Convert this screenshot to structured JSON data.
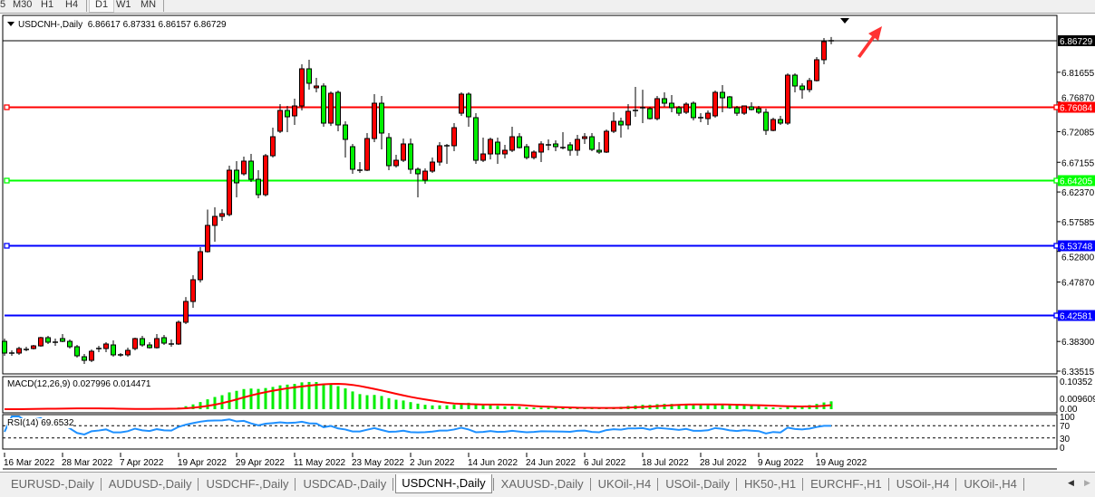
{
  "toolbar": {
    "timeframes": [
      "5",
      "M30",
      "H1",
      "H4",
      "D1",
      "W1",
      "MN"
    ],
    "active": "D1"
  },
  "header": {
    "symbol": "USDCNH-,Daily",
    "ohlc": "6.86617 6.87331 6.86157 6.86729"
  },
  "colors": {
    "bull": "#ff0000",
    "bear": "#00ee00",
    "macd_hist": "#00ee00",
    "macd_signal": "#ff0000",
    "rsi": "#1e90ff",
    "level_red": "#ff0000",
    "level_green": "#00ff00",
    "level_blue": "#0000ff",
    "arrow": "#ff3333"
  },
  "price_axis": {
    "max": 6.86729,
    "min": 6.33515,
    "ticks": [
      "6.81655",
      "6.76870",
      "6.72085",
      "6.67155",
      "6.62370",
      "6.57585",
      "6.52800",
      "6.47870",
      "6.38300",
      "6.33515"
    ],
    "current_price": "6.86729"
  },
  "levels": [
    {
      "price": "6.76084",
      "color": "#ff0000",
      "text_color": "#ffffff"
    },
    {
      "price": "6.64205",
      "color": "#00ff00",
      "text_color": "#ffffff"
    },
    {
      "price": "6.53748",
      "color": "#0000ff",
      "text_color": "#ffffff"
    },
    {
      "price": "6.42581",
      "color": "#0000ff",
      "text_color": "#ffffff"
    }
  ],
  "macd": {
    "label": "MACD(12,26,9) 0.027996 0.014471",
    "fast": 12,
    "slow": 26,
    "signal": 9,
    "axis_top": "0.10352",
    "axis_bottom": "0.009609",
    "axis_zero": "0.00",
    "max": 0.10352,
    "min": -0.0096
  },
  "rsi": {
    "label": "RSI(14) 69.6532",
    "period": 14,
    "levels": [
      "100",
      "70",
      "30",
      "0"
    ]
  },
  "date_labels": [
    "16 Mar 2022",
    "28 Mar 2022",
    "7 Apr 2022",
    "19 Apr 2022",
    "29 Apr 2022",
    "11 May 2022",
    "23 May 2022",
    "2 Jun 2022",
    "14 Jun 2022",
    "24 Jun 2022",
    "6 Jul 2022",
    "18 Jul 2022",
    "28 Jul 2022",
    "9 Aug 2022",
    "19 Aug 2022"
  ],
  "tabs": [
    {
      "label": "EURUSD-,Daily"
    },
    {
      "label": "AUDUSD-,Daily"
    },
    {
      "label": "USDCHF-,Daily"
    },
    {
      "label": "USDCAD-,Daily"
    },
    {
      "label": "USDCNH-,Daily",
      "active": true
    },
    {
      "label": "XAUUSD-,Daily"
    },
    {
      "label": "UKOil-,H4"
    },
    {
      "label": "USOil-,Daily"
    },
    {
      "label": "HK50-,H1"
    },
    {
      "label": "EURCHF-,H1"
    },
    {
      "label": "USOil-,H4"
    },
    {
      "label": "UKOil-,H4"
    }
  ],
  "chart_data": {
    "type": "candlestick",
    "symbol": "USDCNH-",
    "timeframe": "Daily",
    "x_range": [
      "16 Mar 2022",
      "24 Aug 2022"
    ],
    "ylim": [
      6.33515,
      6.86729
    ],
    "grid": false,
    "candles_ohlc": [
      [
        6.3832,
        6.3876,
        6.3599,
        6.3643
      ],
      [
        6.3643,
        6.3687,
        6.3599,
        6.3643
      ],
      [
        6.3643,
        6.3745,
        6.3614,
        6.3716
      ],
      [
        6.3701,
        6.3745,
        6.3672,
        6.3701
      ],
      [
        6.3716,
        6.3774,
        6.3701,
        6.3759
      ],
      [
        6.3759,
        6.3905,
        6.3745,
        6.3891
      ],
      [
        6.3891,
        6.392,
        6.3789,
        6.3818
      ],
      [
        6.3818,
        6.3876,
        6.3759,
        6.3818
      ],
      [
        6.3876,
        6.3949,
        6.3818,
        6.3832
      ],
      [
        6.3832,
        6.3862,
        6.3716,
        6.3745
      ],
      [
        6.3745,
        6.3774,
        6.357,
        6.3599
      ],
      [
        6.3584,
        6.3628,
        6.3468,
        6.3526
      ],
      [
        6.3526,
        6.3701,
        6.3497,
        6.3672
      ],
      [
        6.3716,
        6.3759,
        6.3657,
        6.3716
      ],
      [
        6.3716,
        6.3818,
        6.3657,
        6.3789
      ],
      [
        6.3774,
        6.3847,
        6.3585,
        6.3614
      ],
      [
        6.3614,
        6.3643,
        6.3585,
        6.3614
      ],
      [
        6.3614,
        6.373,
        6.3585,
        6.3687
      ],
      [
        6.3716,
        6.3891,
        6.3687,
        6.3876
      ],
      [
        6.3876,
        6.392,
        6.3745,
        6.3774
      ],
      [
        6.3774,
        6.3818,
        6.3716,
        6.373
      ],
      [
        6.373,
        6.3949,
        6.3716,
        6.3876
      ],
      [
        6.3891,
        6.3935,
        6.3774,
        6.3803
      ],
      [
        6.3789,
        6.3862,
        6.3745,
        6.3789
      ],
      [
        6.3789,
        6.4168,
        6.3774,
        6.4139
      ],
      [
        6.4139,
        6.4546,
        6.411,
        6.4474
      ],
      [
        6.4474,
        6.4896,
        6.4372,
        6.4824
      ],
      [
        6.4824,
        6.5349,
        6.478,
        6.5276
      ],
      [
        6.5276,
        6.5953,
        6.5262,
        6.5699
      ],
      [
        6.5699,
        6.599,
        6.5437,
        6.5844
      ],
      [
        6.5844,
        6.596,
        6.5771,
        6.5888
      ],
      [
        6.5874,
        6.6661,
        6.5844,
        6.6588
      ],
      [
        6.6588,
        6.6734,
        6.6151,
        6.6384
      ],
      [
        6.653,
        6.6807,
        6.6501,
        6.6734
      ],
      [
        6.6734,
        6.685,
        6.6398,
        6.6442
      ],
      [
        6.6442,
        6.6588,
        6.6137,
        6.6194
      ],
      [
        6.6194,
        6.685,
        6.6166,
        6.6821
      ],
      [
        6.6821,
        6.7273,
        6.6792,
        6.7127
      ],
      [
        6.7215,
        6.7652,
        6.7186,
        6.755
      ],
      [
        6.755,
        6.7623,
        6.72,
        6.7448
      ],
      [
        6.7463,
        6.774,
        6.7317,
        6.7623
      ],
      [
        6.7623,
        6.8294,
        6.755,
        6.8221
      ],
      [
        6.8221,
        6.8367,
        6.7886,
        6.7988
      ],
      [
        6.7915,
        6.8075,
        6.7842,
        6.7944
      ],
      [
        6.7944,
        6.7988,
        6.7288,
        6.7346
      ],
      [
        6.7346,
        6.7856,
        6.73,
        6.7827
      ],
      [
        6.7842,
        6.7871,
        6.7215,
        6.7317
      ],
      [
        6.7317,
        6.7375,
        6.6792,
        6.7084
      ],
      [
        6.6967,
        6.7011,
        6.653,
        6.6603
      ],
      [
        6.6588,
        6.6719,
        6.6544,
        6.6588
      ],
      [
        6.6588,
        6.7186,
        6.6573,
        6.7098
      ],
      [
        6.7098,
        6.7813,
        6.704,
        6.7667
      ],
      [
        6.7667,
        6.7784,
        6.6923,
        6.7186
      ],
      [
        6.7113,
        6.7186,
        6.6588,
        6.6661
      ],
      [
        6.6661,
        6.6836,
        6.663,
        6.6748
      ],
      [
        6.6748,
        6.7098,
        6.6719,
        6.7011
      ],
      [
        6.7011,
        6.7098,
        6.653,
        6.6603
      ],
      [
        6.6603,
        6.6632,
        6.6151,
        6.653
      ],
      [
        6.6428,
        6.6617,
        6.6369,
        6.6573
      ],
      [
        6.6573,
        6.6792,
        6.6544,
        6.6719
      ],
      [
        6.6719,
        6.704,
        6.6661,
        6.6982
      ],
      [
        6.6982,
        6.7011,
        6.669,
        6.6982
      ],
      [
        6.6982,
        6.7346,
        6.6894,
        6.7273
      ],
      [
        6.7506,
        6.7842,
        6.7463,
        6.7813
      ],
      [
        6.7813,
        6.7842,
        6.7288,
        6.7448
      ],
      [
        6.7434,
        6.7506,
        6.669,
        6.6748
      ],
      [
        6.6748,
        6.7113,
        6.6719,
        6.685
      ],
      [
        6.685,
        6.7113,
        6.6762,
        6.7084
      ],
      [
        6.704,
        6.7113,
        6.669,
        6.685
      ],
      [
        6.685,
        6.6996,
        6.6777,
        6.6909
      ],
      [
        6.6909,
        6.7288,
        6.688,
        6.7127
      ],
      [
        6.7127,
        6.7186,
        6.6938,
        6.6952
      ],
      [
        6.6967,
        6.7011,
        6.6762,
        6.6792
      ],
      [
        6.6792,
        6.6909,
        6.6762,
        6.688
      ],
      [
        6.688,
        6.7054,
        6.6719,
        6.7011
      ],
      [
        6.6996,
        6.7084,
        6.6909,
        6.6996
      ],
      [
        6.7011,
        6.7069,
        6.6894,
        6.6967
      ],
      [
        6.6952,
        6.72,
        6.6923,
        6.6952
      ],
      [
        6.6996,
        6.704,
        6.6821,
        6.6909
      ],
      [
        6.6909,
        6.7157,
        6.6821,
        6.7084
      ],
      [
        6.7098,
        6.7186,
        6.7011,
        6.7127
      ],
      [
        6.7127,
        6.7186,
        6.6894,
        6.6923
      ],
      [
        6.6909,
        6.704,
        6.685,
        6.688
      ],
      [
        6.688,
        6.7244,
        6.6865,
        6.7215
      ],
      [
        6.7215,
        6.7521,
        6.7186,
        6.7375
      ],
      [
        6.7375,
        6.7434,
        6.7113,
        6.7317
      ],
      [
        6.7317,
        6.7652,
        6.7244,
        6.7536
      ],
      [
        6.755,
        6.7929,
        6.7448,
        6.755
      ],
      [
        6.7579,
        6.7884,
        6.7346,
        6.7594
      ],
      [
        6.7579,
        6.7608,
        6.7404,
        6.7419
      ],
      [
        6.7419,
        6.7784,
        6.739,
        6.774
      ],
      [
        6.774,
        6.7842,
        6.7608,
        6.7667
      ],
      [
        6.7667,
        6.7798,
        6.7521,
        6.7594
      ],
      [
        6.7594,
        6.7623,
        6.7463,
        6.7506
      ],
      [
        6.7521,
        6.7681,
        6.7492,
        6.7652
      ],
      [
        6.7667,
        6.7696,
        6.739,
        6.7434
      ],
      [
        6.7434,
        6.7506,
        6.736,
        6.7434
      ],
      [
        6.7419,
        6.755,
        6.7317,
        6.7506
      ],
      [
        6.7463,
        6.7871,
        6.7434,
        6.7842
      ],
      [
        6.7842,
        6.7958,
        6.7521,
        6.7754
      ],
      [
        6.7769,
        6.7784,
        6.7579,
        6.7594
      ],
      [
        6.7594,
        6.7623,
        6.7463,
        6.7506
      ],
      [
        6.7506,
        6.7623,
        6.7477,
        6.7623
      ],
      [
        6.7609,
        6.7682,
        6.755,
        6.7565
      ],
      [
        6.7579,
        6.7623,
        6.7492,
        6.7521
      ],
      [
        6.7521,
        6.7579,
        6.7156,
        6.7229
      ],
      [
        6.7229,
        6.7433,
        6.7215,
        6.7404
      ],
      [
        6.7404,
        6.7463,
        6.7317,
        6.7346
      ],
      [
        6.7346,
        6.8148,
        6.7317,
        6.8119
      ],
      [
        6.8119,
        6.8148,
        6.7842,
        6.7944
      ],
      [
        6.7944,
        6.7987,
        6.774,
        6.7886
      ],
      [
        6.7886,
        6.8075,
        6.7842,
        6.8031
      ],
      [
        6.8031,
        6.8411,
        6.8017,
        6.8367
      ],
      [
        6.8367,
        6.8717,
        6.8294,
        6.8658
      ],
      [
        6.86617,
        6.87331,
        6.86157,
        6.86729
      ]
    ]
  }
}
